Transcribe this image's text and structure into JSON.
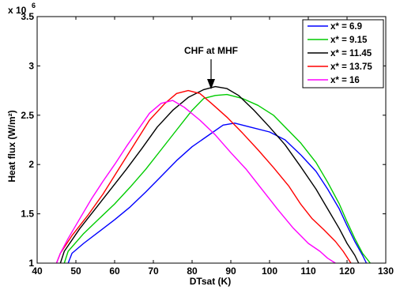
{
  "chart_data": {
    "type": "line",
    "title": "",
    "xlabel": "DTsat (K)",
    "ylabel": "Heat flux (W/m²)",
    "xlim": [
      40,
      130
    ],
    "ylim": [
      1.0,
      3.5
    ],
    "y_multiplier_label": "x 10",
    "y_multiplier_exponent": "6",
    "x_ticks": [
      "40",
      "50",
      "60",
      "70",
      "80",
      "90",
      "100",
      "110",
      "120",
      "130"
    ],
    "y_ticks": [
      "1",
      "1.5",
      "2",
      "2.5",
      "3",
      "3.5"
    ],
    "grid": false,
    "legend_position": "top-right",
    "annotation": {
      "text": "CHF at MHF",
      "x": 86,
      "y": 2.78
    },
    "series": [
      {
        "name": "x* = 6.9",
        "color": "#0000ff",
        "points": [
          [
            48,
            1.0
          ],
          [
            49,
            1.1
          ],
          [
            52,
            1.2
          ],
          [
            56,
            1.32
          ],
          [
            60,
            1.44
          ],
          [
            64,
            1.57
          ],
          [
            68,
            1.72
          ],
          [
            72,
            1.88
          ],
          [
            76,
            2.04
          ],
          [
            80,
            2.18
          ],
          [
            84,
            2.29
          ],
          [
            88,
            2.4
          ],
          [
            91,
            2.42
          ],
          [
            95,
            2.38
          ],
          [
            100,
            2.33
          ],
          [
            104,
            2.25
          ],
          [
            108,
            2.1
          ],
          [
            112,
            1.93
          ],
          [
            115,
            1.75
          ],
          [
            118,
            1.55
          ],
          [
            120,
            1.38
          ],
          [
            122,
            1.22
          ],
          [
            124,
            1.08
          ],
          [
            125,
            1.0
          ]
        ]
      },
      {
        "name": "x* = 9.15",
        "color": "#00cc00",
        "points": [
          [
            47,
            1.0
          ],
          [
            48,
            1.12
          ],
          [
            52,
            1.3
          ],
          [
            56,
            1.45
          ],
          [
            60,
            1.6
          ],
          [
            64,
            1.77
          ],
          [
            68,
            1.95
          ],
          [
            72,
            2.15
          ],
          [
            76,
            2.35
          ],
          [
            80,
            2.55
          ],
          [
            83,
            2.67
          ],
          [
            86,
            2.7
          ],
          [
            89,
            2.71
          ],
          [
            93,
            2.67
          ],
          [
            97,
            2.6
          ],
          [
            101,
            2.5
          ],
          [
            104,
            2.38
          ],
          [
            108,
            2.22
          ],
          [
            112,
            2.02
          ],
          [
            115,
            1.82
          ],
          [
            118,
            1.6
          ],
          [
            120,
            1.42
          ],
          [
            122,
            1.25
          ],
          [
            124,
            1.1
          ],
          [
            126,
            1.0
          ]
        ]
      },
      {
        "name": "x* = 11.45",
        "color": "#000000",
        "points": [
          [
            46,
            1.0
          ],
          [
            47,
            1.12
          ],
          [
            51,
            1.35
          ],
          [
            55,
            1.55
          ],
          [
            59,
            1.75
          ],
          [
            63,
            1.95
          ],
          [
            67,
            2.16
          ],
          [
            71,
            2.38
          ],
          [
            75,
            2.55
          ],
          [
            79,
            2.68
          ],
          [
            83,
            2.76
          ],
          [
            86,
            2.79
          ],
          [
            89,
            2.77
          ],
          [
            92,
            2.7
          ],
          [
            96,
            2.55
          ],
          [
            100,
            2.38
          ],
          [
            104,
            2.2
          ],
          [
            108,
            1.98
          ],
          [
            112,
            1.75
          ],
          [
            115,
            1.55
          ],
          [
            118,
            1.35
          ],
          [
            120,
            1.2
          ],
          [
            122,
            1.08
          ],
          [
            123,
            1.0
          ]
        ]
      },
      {
        "name": "x* = 13.75",
        "color": "#ff0000",
        "points": [
          [
            45,
            1.0
          ],
          [
            46,
            1.1
          ],
          [
            49,
            1.28
          ],
          [
            53,
            1.48
          ],
          [
            57,
            1.7
          ],
          [
            61,
            1.95
          ],
          [
            65,
            2.2
          ],
          [
            69,
            2.45
          ],
          [
            73,
            2.62
          ],
          [
            76,
            2.72
          ],
          [
            79,
            2.75
          ],
          [
            82,
            2.72
          ],
          [
            85,
            2.62
          ],
          [
            89,
            2.48
          ],
          [
            93,
            2.32
          ],
          [
            97,
            2.15
          ],
          [
            101,
            1.97
          ],
          [
            105,
            1.78
          ],
          [
            108,
            1.6
          ],
          [
            111,
            1.45
          ],
          [
            114,
            1.34
          ],
          [
            117,
            1.22
          ],
          [
            119,
            1.12
          ],
          [
            121,
            1.0
          ]
        ]
      },
      {
        "name": "x* = 16",
        "color": "#ff00ff",
        "points": [
          [
            45,
            1.0
          ],
          [
            46,
            1.1
          ],
          [
            48,
            1.25
          ],
          [
            51,
            1.45
          ],
          [
            54,
            1.65
          ],
          [
            57,
            1.83
          ],
          [
            60,
            2.0
          ],
          [
            63,
            2.18
          ],
          [
            66,
            2.35
          ],
          [
            69,
            2.52
          ],
          [
            72,
            2.62
          ],
          [
            75,
            2.65
          ],
          [
            78,
            2.58
          ],
          [
            82,
            2.45
          ],
          [
            86,
            2.3
          ],
          [
            90,
            2.12
          ],
          [
            94,
            1.95
          ],
          [
            98,
            1.75
          ],
          [
            102,
            1.55
          ],
          [
            106,
            1.36
          ],
          [
            110,
            1.2
          ],
          [
            113,
            1.12
          ],
          [
            115,
            1.05
          ],
          [
            117,
            1.0
          ]
        ]
      }
    ]
  }
}
